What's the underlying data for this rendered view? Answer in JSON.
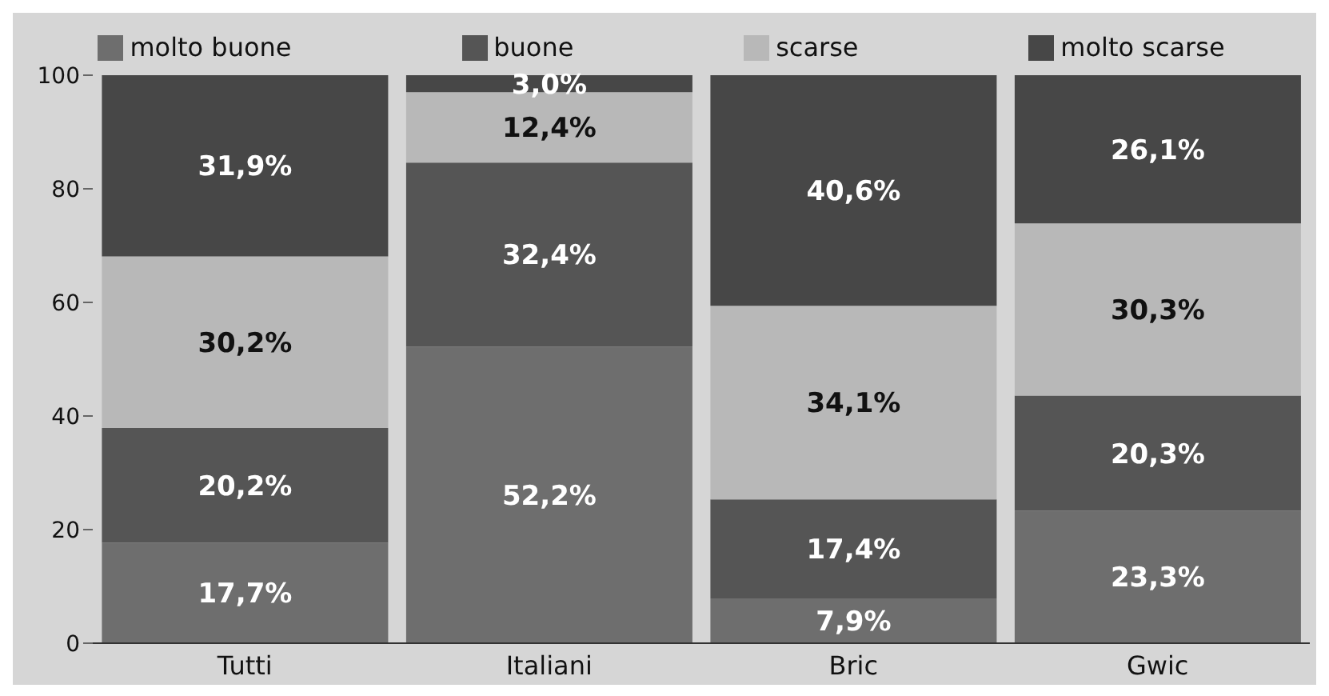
{
  "chart_data": {
    "type": "bar",
    "stacked": true,
    "categories": [
      "Tutti",
      "Italiani",
      "Bric",
      "Gwic"
    ],
    "series": [
      {
        "name": "molto buone",
        "color": "#6e6e6e",
        "values": [
          17.7,
          52.2,
          7.9,
          23.3
        ],
        "value_labels": [
          "17,7%",
          "52,2%",
          "7,9%",
          "23,3%"
        ]
      },
      {
        "name": "buone",
        "color": "#555555",
        "values": [
          20.2,
          32.4,
          17.4,
          20.3
        ],
        "value_labels": [
          "20,2%",
          "32,4%",
          "17,4%",
          "20,3%"
        ]
      },
      {
        "name": "scarse",
        "color": "#b8b8b8",
        "values": [
          30.2,
          12.4,
          34.1,
          30.3
        ],
        "value_labels": [
          "30,2%",
          "12,4%",
          "34,1%",
          "30,3%"
        ]
      },
      {
        "name": "molto scarse",
        "color": "#474747",
        "values": [
          31.9,
          3.0,
          40.6,
          26.1
        ],
        "value_labels": [
          "31,9%",
          "3,0%",
          "40,6%",
          "26,1%"
        ]
      }
    ],
    "ylim": [
      0,
      100
    ],
    "yticks": [
      0,
      20,
      40,
      60,
      80,
      100
    ],
    "legend": "top"
  }
}
